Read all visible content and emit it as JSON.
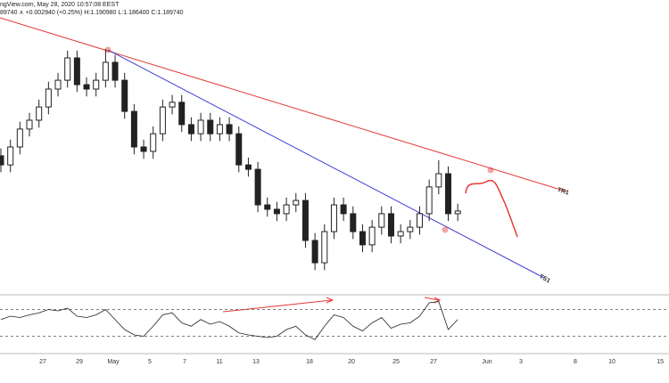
{
  "header": {
    "source": "ngView.com, May 28, 2020 10:57:08 EEST",
    "quote": "89740 ∧ +0.002940 (+0.25%) H:1.190980 L:1.186400 C:1.189740"
  },
  "chart_data": {
    "type": "candlestick",
    "ylim": [
      1.16,
      1.26
    ],
    "open": [
      1.207,
      1.2039,
      1.21,
      1.2161,
      1.2191,
      1.2236,
      1.2297,
      1.2327,
      1.2403,
      1.2312,
      1.2297,
      1.2327,
      1.2388,
      1.2327,
      1.2221,
      1.21,
      1.2085,
      1.2145,
      1.2236,
      1.2252,
      1.2176,
      1.2145,
      1.2191,
      1.2145,
      1.2176,
      1.2145,
      1.2039,
      1.2024,
      1.1903,
      1.1888,
      1.1873,
      1.1903,
      1.1918,
      1.1782,
      1.1706,
      1.1812,
      1.1903,
      1.1873,
      1.1812,
      1.1767,
      1.1827,
      1.1873,
      1.1797,
      1.1812,
      1.1827,
      1.1873,
      1.1964,
      1.2009,
      1.1873
    ],
    "high": [
      1.2095,
      1.2125,
      1.2186,
      1.2216,
      1.2261,
      1.2322,
      1.2352,
      1.2428,
      1.2428,
      1.2337,
      1.2352,
      1.2433,
      1.2413,
      1.2352,
      1.2246,
      1.2125,
      1.217,
      1.2261,
      1.2277,
      1.2277,
      1.2201,
      1.2216,
      1.2216,
      1.2201,
      1.2201,
      1.217,
      1.2064,
      1.2049,
      1.1928,
      1.1913,
      1.1928,
      1.1943,
      1.1943,
      1.1807,
      1.1837,
      1.1928,
      1.1928,
      1.1898,
      1.1837,
      1.1852,
      1.1898,
      1.1898,
      1.1837,
      1.1852,
      1.1898,
      1.1989,
      1.2055,
      1.2034,
      1.1907
    ],
    "low": [
      1.2014,
      1.2014,
      1.2075,
      1.2136,
      1.2166,
      1.2211,
      1.2272,
      1.2302,
      1.2287,
      1.2272,
      1.2272,
      1.2302,
      1.2302,
      1.2196,
      1.2075,
      1.206,
      1.206,
      1.212,
      1.2211,
      1.2151,
      1.212,
      1.212,
      1.212,
      1.212,
      1.212,
      1.2014,
      1.1999,
      1.1878,
      1.1863,
      1.1848,
      1.1848,
      1.1878,
      1.1757,
      1.1681,
      1.1681,
      1.1787,
      1.1848,
      1.1787,
      1.1742,
      1.1742,
      1.1802,
      1.1772,
      1.1772,
      1.1787,
      1.1802,
      1.1848,
      1.1939,
      1.1848,
      1.1848
    ],
    "close": [
      1.2039,
      1.21,
      1.2161,
      1.2191,
      1.2236,
      1.2297,
      1.2327,
      1.2403,
      1.2312,
      1.2297,
      1.2327,
      1.2388,
      1.2327,
      1.2221,
      1.21,
      1.2085,
      1.2145,
      1.2236,
      1.2252,
      1.2176,
      1.2145,
      1.2191,
      1.2145,
      1.2176,
      1.2145,
      1.2039,
      1.2024,
      1.1903,
      1.1888,
      1.1873,
      1.1903,
      1.1918,
      1.1782,
      1.1706,
      1.1812,
      1.1903,
      1.1873,
      1.1812,
      1.1767,
      1.1827,
      1.1873,
      1.1797,
      1.1812,
      1.1827,
      1.1873,
      1.1964,
      1.2009,
      1.1873,
      1.1882
    ],
    "color": "#222222",
    "trendlines": [
      {
        "name": "TR1",
        "color": "#e53935"
      },
      {
        "name": "TS1",
        "color": "#3f3fd8"
      }
    ],
    "oscillator": {
      "values": [
        55,
        60,
        58,
        62,
        65,
        70,
        68,
        72,
        60,
        58,
        62,
        70,
        55,
        40,
        32,
        30,
        45,
        62,
        65,
        50,
        45,
        55,
        48,
        52,
        45,
        35,
        32,
        30,
        28,
        30,
        40,
        45,
        32,
        25,
        45,
        62,
        58,
        45,
        38,
        50,
        58,
        42,
        48,
        50,
        60,
        80,
        82,
        40,
        55
      ],
      "ylim": [
        0,
        100
      ],
      "levels": [
        70,
        30
      ],
      "color": "#222222"
    },
    "x_labels": [
      "27",
      "29",
      "May",
      "5",
      "7",
      "11",
      "13",
      "18",
      "20",
      "25",
      "27",
      "Jun",
      "3",
      "8",
      "10",
      "15"
    ]
  }
}
